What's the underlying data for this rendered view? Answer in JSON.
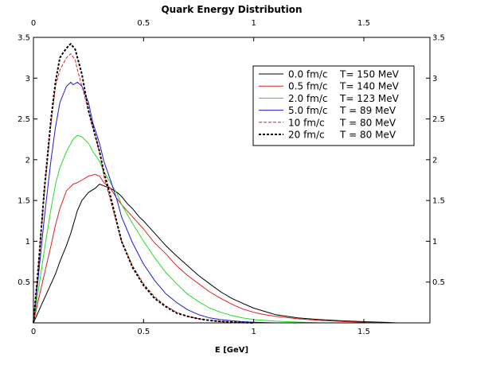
{
  "chart_data": {
    "type": "line",
    "title": "Quark Energy Distribution",
    "xlabel": "E [GeV]",
    "ylabel": "",
    "xlim": [
      0,
      1.8
    ],
    "ylim": [
      0,
      3.5
    ],
    "x_ticks": [
      0,
      0.5,
      1,
      1.5
    ],
    "x_tick_labels": [
      "0",
      "0.5",
      "1",
      "1.5"
    ],
    "y_ticks": [
      0.5,
      1,
      1.5,
      2,
      2.5,
      3,
      3.5
    ],
    "y_tick_labels": [
      "0.5",
      "1",
      "1.5",
      "2",
      "2.5",
      "3",
      "3.5"
    ],
    "legend_position": "top-right",
    "series": [
      {
        "name": "0.0 fm/c",
        "temperature": "T= 150 MeV",
        "color": "#000000",
        "dash": "solid",
        "x": [
          0.0,
          0.02,
          0.05,
          0.08,
          0.1,
          0.12,
          0.15,
          0.17,
          0.2,
          0.22,
          0.25,
          0.28,
          0.3,
          0.32,
          0.35,
          0.38,
          0.4,
          0.43,
          0.45,
          0.48,
          0.5,
          0.55,
          0.6,
          0.65,
          0.7,
          0.75,
          0.8,
          0.85,
          0.9,
          0.95,
          1.0,
          1.05,
          1.1,
          1.15,
          1.2,
          1.3,
          1.4,
          1.5,
          1.6,
          1.65
        ],
        "values": [
          0.0,
          0.12,
          0.3,
          0.48,
          0.6,
          0.75,
          0.95,
          1.1,
          1.38,
          1.5,
          1.6,
          1.65,
          1.7,
          1.68,
          1.65,
          1.6,
          1.55,
          1.45,
          1.4,
          1.3,
          1.25,
          1.1,
          0.95,
          0.82,
          0.7,
          0.58,
          0.48,
          0.38,
          0.3,
          0.24,
          0.18,
          0.14,
          0.1,
          0.08,
          0.06,
          0.04,
          0.025,
          0.015,
          0.006,
          0.0
        ]
      },
      {
        "name": "0.5 fm/c",
        "temperature": "T= 140 MeV",
        "color": "#e0201a",
        "dash": "solid",
        "x": [
          0.0,
          0.02,
          0.05,
          0.08,
          0.1,
          0.12,
          0.15,
          0.18,
          0.2,
          0.22,
          0.25,
          0.28,
          0.3,
          0.32,
          0.35,
          0.38,
          0.4,
          0.45,
          0.5,
          0.55,
          0.6,
          0.65,
          0.7,
          0.75,
          0.8,
          0.85,
          0.9,
          0.95,
          1.0,
          1.05,
          1.1,
          1.2,
          1.3,
          1.4,
          1.5,
          1.6
        ],
        "values": [
          0.0,
          0.25,
          0.6,
          0.95,
          1.2,
          1.4,
          1.62,
          1.7,
          1.72,
          1.75,
          1.8,
          1.82,
          1.8,
          1.72,
          1.65,
          1.52,
          1.45,
          1.3,
          1.15,
          0.98,
          0.85,
          0.7,
          0.58,
          0.48,
          0.38,
          0.3,
          0.23,
          0.17,
          0.13,
          0.1,
          0.08,
          0.05,
          0.03,
          0.018,
          0.008,
          0.0
        ]
      },
      {
        "name": "2.0 fm/c",
        "temperature": "T= 123 MeV",
        "color": "#22dd22",
        "dash": "solid",
        "x": [
          0.0,
          0.02,
          0.05,
          0.08,
          0.1,
          0.12,
          0.15,
          0.18,
          0.2,
          0.22,
          0.25,
          0.27,
          0.3,
          0.32,
          0.35,
          0.38,
          0.4,
          0.45,
          0.5,
          0.55,
          0.6,
          0.65,
          0.7,
          0.75,
          0.8,
          0.85,
          0.9,
          0.95,
          1.0,
          1.1,
          1.2,
          1.3
        ],
        "values": [
          0.0,
          0.35,
          0.9,
          1.4,
          1.7,
          1.9,
          2.1,
          2.25,
          2.3,
          2.28,
          2.2,
          2.1,
          1.98,
          1.85,
          1.72,
          1.58,
          1.45,
          1.22,
          1.0,
          0.8,
          0.62,
          0.48,
          0.35,
          0.26,
          0.18,
          0.13,
          0.09,
          0.06,
          0.04,
          0.02,
          0.01,
          0.0
        ]
      },
      {
        "name": "5.0 fm/c",
        "temperature": "T = 89 MeV",
        "color": "#1a1ad8",
        "dash": "solid",
        "x": [
          0.0,
          0.02,
          0.05,
          0.08,
          0.1,
          0.12,
          0.15,
          0.17,
          0.18,
          0.2,
          0.22,
          0.25,
          0.27,
          0.3,
          0.32,
          0.35,
          0.38,
          0.4,
          0.45,
          0.5,
          0.55,
          0.6,
          0.65,
          0.7,
          0.75,
          0.8,
          0.85,
          0.9,
          0.95,
          1.0,
          1.1
        ],
        "values": [
          0.0,
          0.5,
          1.3,
          2.0,
          2.4,
          2.7,
          2.9,
          2.95,
          2.92,
          2.95,
          2.9,
          2.7,
          2.45,
          2.2,
          1.98,
          1.75,
          1.5,
          1.3,
          0.98,
          0.72,
          0.52,
          0.36,
          0.25,
          0.16,
          0.1,
          0.06,
          0.04,
          0.025,
          0.015,
          0.008,
          0.0
        ]
      },
      {
        "name": "10 fm/c",
        "temperature": "T = 80 MeV",
        "color": "#e0201a",
        "dash": "dashed",
        "x": [
          0.0,
          0.02,
          0.05,
          0.08,
          0.1,
          0.12,
          0.15,
          0.17,
          0.19,
          0.2,
          0.22,
          0.25,
          0.27,
          0.3,
          0.32,
          0.35,
          0.38,
          0.4,
          0.45,
          0.5,
          0.55,
          0.6,
          0.65,
          0.7,
          0.75,
          0.8,
          0.85,
          0.9,
          0.95,
          1.0
        ],
        "values": [
          0.0,
          0.6,
          1.6,
          2.45,
          2.9,
          3.1,
          3.25,
          3.3,
          3.22,
          3.1,
          2.9,
          2.6,
          2.4,
          2.1,
          1.8,
          1.5,
          1.2,
          1.0,
          0.7,
          0.48,
          0.32,
          0.21,
          0.13,
          0.08,
          0.05,
          0.03,
          0.018,
          0.01,
          0.005,
          0.0
        ]
      },
      {
        "name": "20 fm/c",
        "temperature": "T = 80 MeV",
        "color": "#000000",
        "dash": "dotted",
        "x": [
          0.0,
          0.02,
          0.05,
          0.08,
          0.1,
          0.12,
          0.14,
          0.16,
          0.17,
          0.19,
          0.2,
          0.22,
          0.25,
          0.27,
          0.3,
          0.32,
          0.35,
          0.38,
          0.4,
          0.45,
          0.5,
          0.55,
          0.6,
          0.65,
          0.7,
          0.75,
          0.8,
          0.85,
          0.9,
          0.95,
          1.0
        ],
        "values": [
          0.0,
          0.6,
          1.65,
          2.5,
          2.95,
          3.25,
          3.33,
          3.4,
          3.42,
          3.35,
          3.25,
          3.05,
          2.6,
          2.4,
          2.1,
          1.85,
          1.55,
          1.22,
          1.0,
          0.68,
          0.46,
          0.3,
          0.2,
          0.12,
          0.08,
          0.05,
          0.03,
          0.018,
          0.01,
          0.005,
          0.0
        ]
      }
    ]
  }
}
